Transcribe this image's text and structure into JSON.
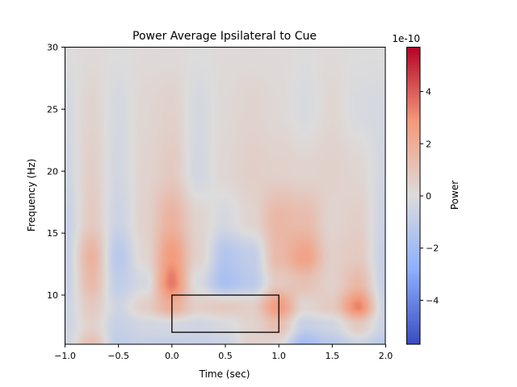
{
  "chart_data": {
    "type": "heatmap",
    "title": "Power Average Ipsilateral to Cue",
    "xlabel": "Time (sec)",
    "ylabel": "Frequency (Hz)",
    "xlim": [
      -1.0,
      2.0
    ],
    "ylim": [
      6,
      30
    ],
    "xticks": [
      "-1.0",
      "-0.5",
      "0.0",
      "0.5",
      "1.0",
      "1.5",
      "2.0"
    ],
    "yticks": [
      "10",
      "15",
      "20",
      "25",
      "30"
    ],
    "colormap": "coolwarm",
    "colorbar": {
      "label": "Power",
      "scale_label": "1e-10",
      "range": [
        -5.7,
        5.7
      ],
      "ticks": [
        "−4",
        "−2",
        "0",
        "2",
        "4"
      ]
    },
    "value_unit_multiplier": 1e-10,
    "times": [
      -1,
      -0.75,
      -0.5,
      -0.25,
      0,
      0.25,
      0.5,
      0.75,
      1,
      1.25,
      1.5,
      1.75,
      2
    ],
    "freqs": [
      6,
      7.5,
      9,
      11,
      13,
      16,
      20,
      25,
      30
    ],
    "values": [
      [
        -0.5,
        1.2,
        -1.0,
        -0.8,
        -0.8,
        -0.8,
        -0.6,
        0.5,
        0.2,
        -2.0,
        -1.2,
        -0.5,
        -1.2
      ],
      [
        -0.6,
        0.5,
        -0.8,
        -0.4,
        -0.3,
        -0.5,
        -0.2,
        0.4,
        1.3,
        -0.8,
        -0.5,
        0.8,
        -0.6
      ],
      [
        -0.6,
        0.8,
        -0.5,
        0.6,
        2.0,
        0.6,
        0.8,
        0.6,
        2.8,
        0.3,
        0.8,
        3.3,
        -0.6
      ],
      [
        -0.8,
        1.5,
        -1.0,
        -0.3,
        3.5,
        -0.2,
        -1.8,
        -1.2,
        0.8,
        1.2,
        0.5,
        1.5,
        -0.8
      ],
      [
        -0.8,
        1.8,
        -1.3,
        0.3,
        2.8,
        0.5,
        -1.5,
        -1.0,
        1.5,
        2.5,
        0.6,
        0.8,
        -0.8
      ],
      [
        -0.8,
        0.8,
        -0.6,
        0.5,
        1.8,
        0.4,
        -0.3,
        0.4,
        1.6,
        1.4,
        0.4,
        0.6,
        -0.6
      ],
      [
        -0.5,
        0.6,
        -0.4,
        0.4,
        0.8,
        -0.4,
        0.3,
        0.6,
        0.5,
        0.4,
        0.5,
        0.3,
        -0.4
      ],
      [
        -0.3,
        0.4,
        -0.3,
        0.3,
        0.5,
        -0.3,
        0.2,
        0.4,
        0.2,
        -0.2,
        0.3,
        -0.2,
        -0.3
      ],
      [
        0.0,
        0.1,
        0.0,
        0.1,
        0.1,
        0.0,
        0.1,
        0.1,
        0.1,
        0.0,
        0.1,
        0.0,
        0.0
      ]
    ],
    "roi_rectangle": {
      "time": [
        0.0,
        1.0
      ],
      "freq": [
        7,
        10
      ],
      "color": "#000000"
    }
  }
}
